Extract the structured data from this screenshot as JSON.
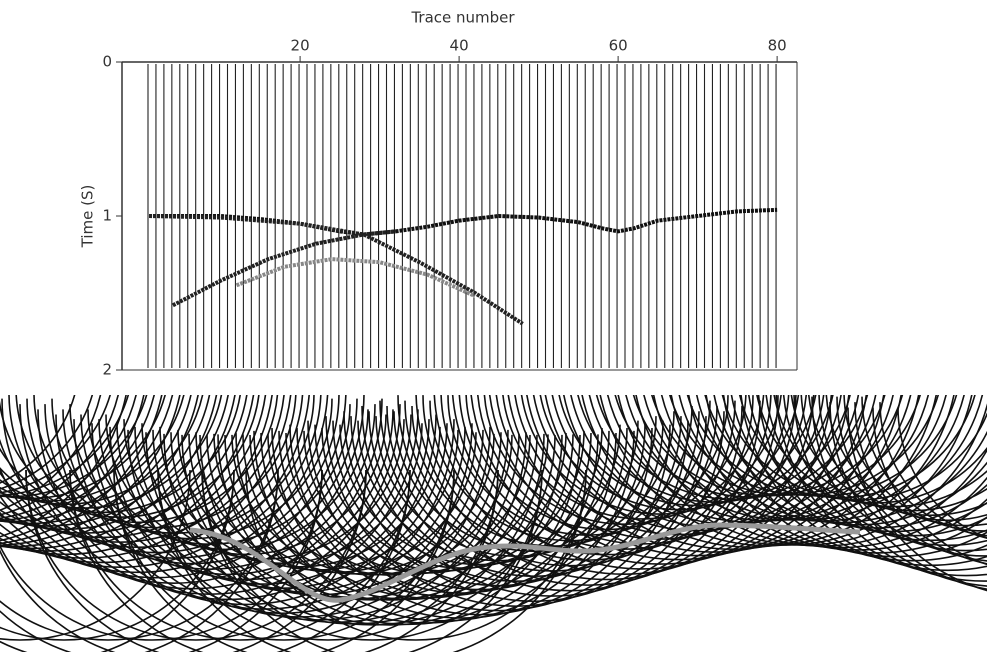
{
  "chart_data": {
    "type": "seismic",
    "x_label": "Trace number",
    "y_label": "Time (S)",
    "xlim": [
      -2.4,
      82.5
    ],
    "ylim": [
      0,
      2
    ],
    "y_inverted": true,
    "xticks": [
      20,
      40,
      60,
      80
    ],
    "yticks": [
      0,
      1,
      2
    ],
    "series": [
      {
        "color": "#111111",
        "x": [
          1,
          5,
          10,
          15,
          20,
          25,
          28,
          32,
          36,
          40,
          45,
          50,
          55,
          58,
          60,
          62,
          65,
          70,
          75,
          80
        ],
        "values": [
          1.0,
          1.0,
          1.0,
          1.02,
          1.05,
          1.1,
          1.12,
          1.1,
          1.07,
          1.03,
          1.0,
          1.01,
          1.04,
          1.08,
          1.1,
          1.08,
          1.03,
          1.0,
          0.97,
          0.96
        ]
      },
      {
        "color": "#222222",
        "x": [
          1,
          10,
          20,
          28,
          35,
          42,
          48
        ],
        "values": [
          1.0,
          1.01,
          1.05,
          1.12,
          1.3,
          1.5,
          1.7
        ]
      },
      {
        "color": "#222222",
        "x": [
          4,
          10,
          16,
          22,
          28,
          32
        ],
        "values": [
          1.58,
          1.42,
          1.28,
          1.18,
          1.12,
          1.1
        ]
      },
      {
        "color": "#888888",
        "x": [
          12,
          18,
          24,
          30,
          36,
          42
        ],
        "values": [
          1.45,
          1.33,
          1.28,
          1.3,
          1.38,
          1.52
        ]
      }
    ]
  }
}
